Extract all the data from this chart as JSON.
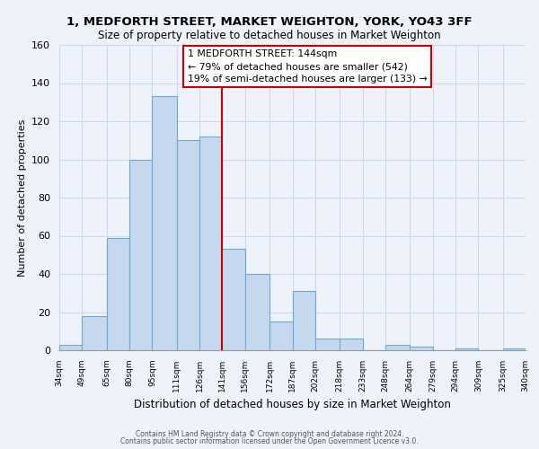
{
  "title": "1, MEDFORTH STREET, MARKET WEIGHTON, YORK, YO43 3FF",
  "subtitle": "Size of property relative to detached houses in Market Weighton",
  "xlabel": "Distribution of detached houses by size in Market Weighton",
  "ylabel": "Number of detached properties",
  "bar_color": "#c5d8ee",
  "bar_edge_color": "#6aaad4",
  "bins": [
    34,
    49,
    65,
    80,
    95,
    111,
    126,
    141,
    156,
    172,
    187,
    202,
    218,
    233,
    248,
    264,
    279,
    294,
    309,
    325,
    340
  ],
  "counts": [
    3,
    18,
    59,
    100,
    133,
    110,
    112,
    53,
    40,
    15,
    31,
    6,
    6,
    0,
    3,
    2,
    0,
    1,
    0,
    1
  ],
  "tick_labels": [
    "34sqm",
    "49sqm",
    "65sqm",
    "80sqm",
    "95sqm",
    "111sqm",
    "126sqm",
    "141sqm",
    "156sqm",
    "172sqm",
    "187sqm",
    "202sqm",
    "218sqm",
    "233sqm",
    "248sqm",
    "264sqm",
    "279sqm",
    "294sqm",
    "309sqm",
    "325sqm",
    "340sqm"
  ],
  "vline_x": 141,
  "annotation_title": "1 MEDFORTH STREET: 144sqm",
  "annotation_line1": "← 79% of detached houses are smaller (542)",
  "annotation_line2": "19% of semi-detached houses are larger (133) →",
  "annotation_box_color": "white",
  "annotation_box_edge": "#cc0000",
  "vline_color": "#cc0000",
  "ylim": [
    0,
    160
  ],
  "yticks": [
    0,
    20,
    40,
    60,
    80,
    100,
    120,
    140,
    160
  ],
  "footer1": "Contains HM Land Registry data © Crown copyright and database right 2024.",
  "footer2": "Contains public sector information licensed under the Open Government Licence v3.0.",
  "bg_color": "#eef2fa",
  "grid_color": "#d0d8ea"
}
